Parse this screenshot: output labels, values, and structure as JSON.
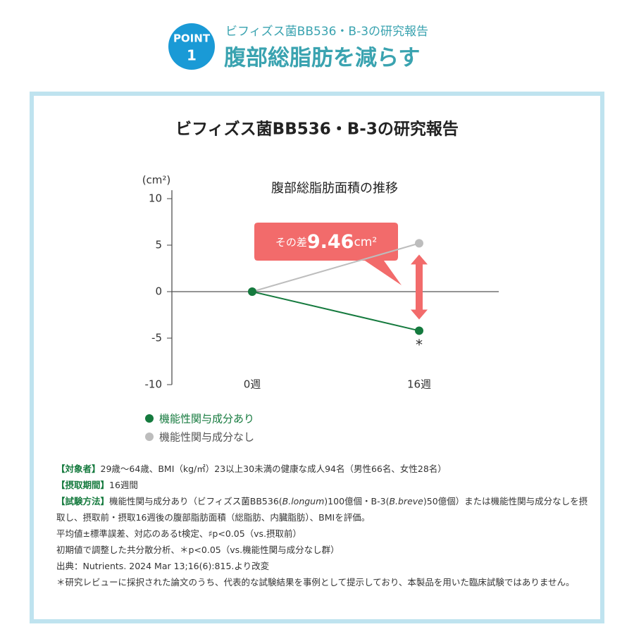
{
  "header": {
    "badge_word": "POINT",
    "badge_number": "1",
    "subtitle": "ビフィズス菌BB536・B-3の研究報告",
    "title": "腹部総脂肪を減らす"
  },
  "panel_title": "ビフィズス菌BB536・B-3の研究報告",
  "chart_data": {
    "type": "line",
    "title": "腹部総脂肪面積の推移",
    "y_unit": "(cm²)",
    "categories": [
      "0週",
      "16週"
    ],
    "series": [
      {
        "name": "機能性関与成分あり",
        "color": "#157a3e",
        "values": [
          0,
          -4.2
        ]
      },
      {
        "name": "機能性関与成分なし",
        "color": "#bdbdbd",
        "values": [
          0,
          5.2
        ]
      }
    ],
    "ylim": [
      -10,
      10
    ],
    "yticks": [
      -10,
      -5,
      0,
      5,
      10
    ],
    "annotation": {
      "prefix": "その差",
      "value": "9.46",
      "unit": "cm²"
    },
    "significance_mark": "*"
  },
  "notes": [
    {
      "label": "【対象者】",
      "parts": [
        "29歳〜64歳、BMI（kg/㎡）23以上30未満の健康な成人94名（男性66名、女性28名）"
      ]
    },
    {
      "label": "【摂取期間】",
      "parts": [
        "16週間"
      ]
    },
    {
      "label": "【試験方法】",
      "parts": [
        "機能性関与成分あり（ビフィズス菌BB536(",
        "B.longum",
        ")100億個・B-3(",
        "B.breve",
        ")50億個）または機能性関与成分なしを摂取し、摂取前・摂取16週後の腹部脂肪面積（総脂肪、内臓脂肪）、BMIを評価。"
      ]
    },
    {
      "label": "",
      "parts": [
        "平均値±標準誤差、対応のあるt検定、♯p<0.05（vs.摂取前）"
      ]
    },
    {
      "label": "",
      "parts": [
        "初期値で調整した共分散分析、＊p<0.05（vs.機能性関与成分なし群）"
      ]
    },
    {
      "label": "",
      "parts": [
        "出典：Nutrients. 2024 Mar 13;16(6):815.より改変"
      ]
    },
    {
      "label": "",
      "parts": [
        "＊研究レビューに採択された論文のうち、代表的な試験結果を事例として提示しており、本製品を用いた臨床試験ではありません。"
      ]
    }
  ]
}
